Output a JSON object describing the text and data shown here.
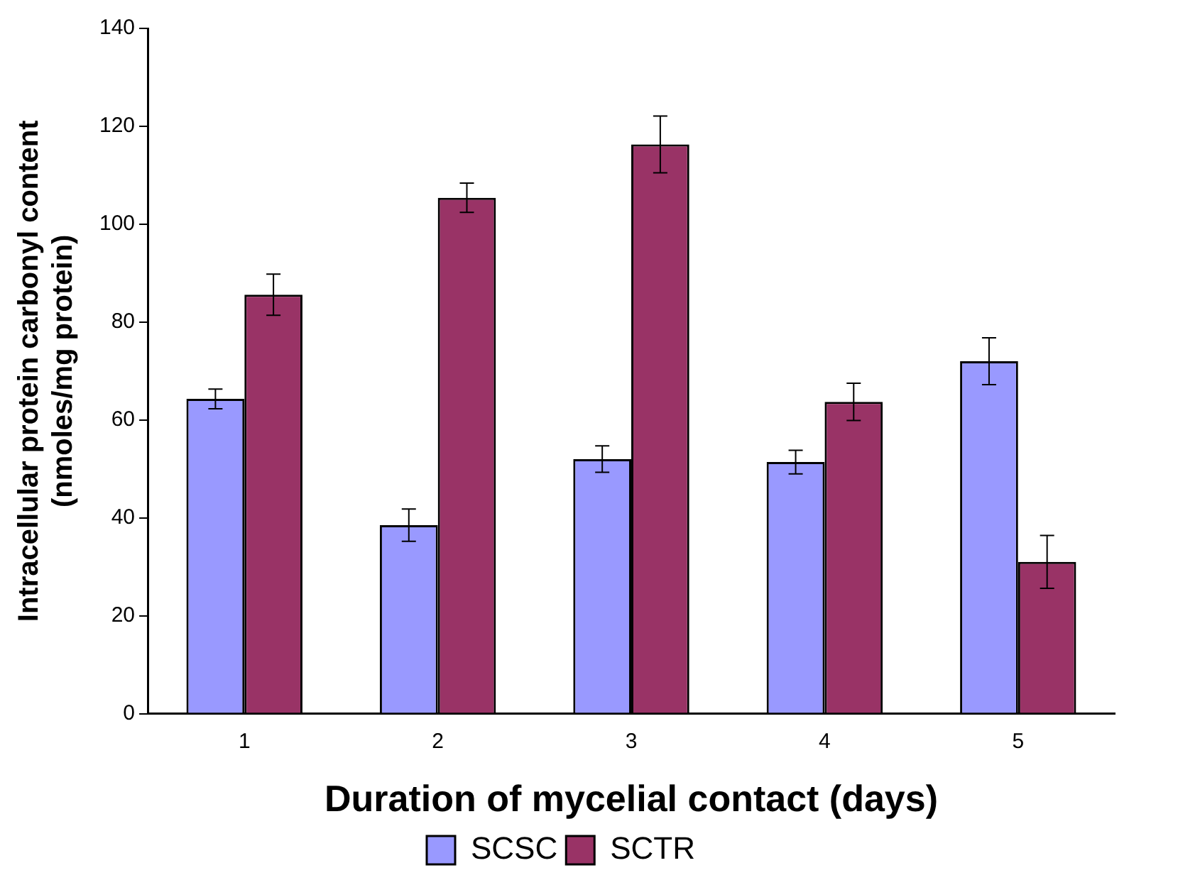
{
  "chart_data": {
    "type": "bar",
    "xlabel": "Duration of mycelial contact (days)",
    "ylabel": "Intracellular protein carbonyl content\n(nmoles/mg protein)",
    "categories": [
      "1",
      "2",
      "3",
      "4",
      "5"
    ],
    "series": [
      {
        "name": "SCSC",
        "color": "#9999ff",
        "values": [
          64.3,
          38.5,
          52,
          51.4,
          72
        ],
        "errors": [
          2,
          3.3,
          2.7,
          2.4,
          4.8
        ]
      },
      {
        "name": "SCTR",
        "color": "#993366",
        "values": [
          85.6,
          105.4,
          116.3,
          63.7,
          31
        ],
        "errors": [
          4.2,
          3,
          5.8,
          3.8,
          5.4
        ]
      }
    ],
    "ylim": [
      0,
      140
    ],
    "yticks": [
      0,
      20,
      40,
      60,
      80,
      100,
      120,
      140
    ],
    "grid": false,
    "legend": "bottom"
  }
}
